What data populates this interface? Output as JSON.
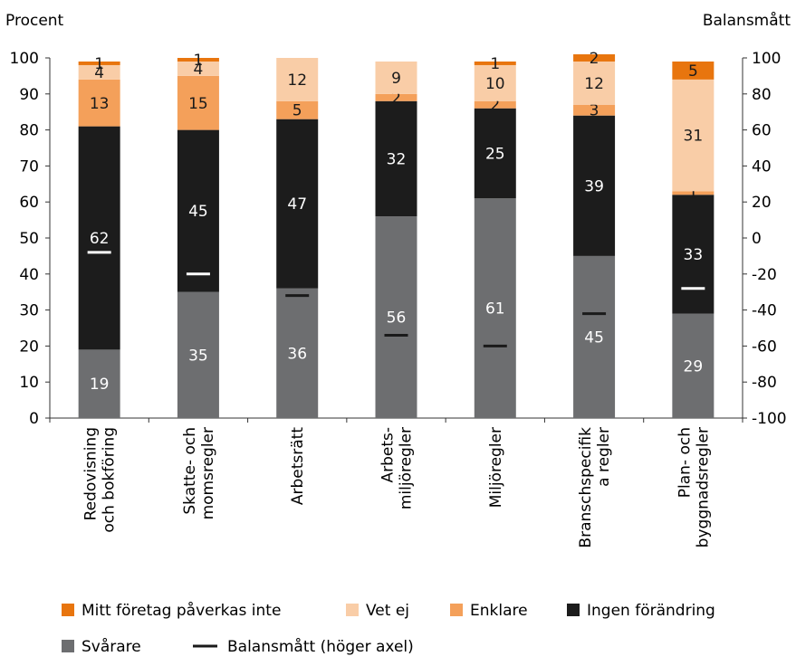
{
  "chart_data": {
    "type": "bar",
    "stacked": true,
    "ylabel": "Procent",
    "y2label": "Balansmått",
    "ylim": [
      0,
      100
    ],
    "y2lim": [
      -100,
      100
    ],
    "yticks": [
      0,
      10,
      20,
      30,
      40,
      50,
      60,
      70,
      80,
      90,
      100
    ],
    "y2ticks": [
      -100,
      -80,
      -60,
      -40,
      -20,
      0,
      20,
      40,
      60,
      80,
      100
    ],
    "categories": [
      [
        "Redovisning",
        "och bokföring"
      ],
      [
        "Skatte- och",
        "momsregler"
      ],
      [
        "Arbetsrätt"
      ],
      [
        "Arbets-",
        "miljöregler"
      ],
      [
        "Miljöregler"
      ],
      [
        "Branschspecifik",
        "a regler"
      ],
      [
        "Plan- och",
        "byggnadsregler"
      ]
    ],
    "series": [
      {
        "name": "Svårare",
        "color": "#6d6e70",
        "values": [
          19,
          35,
          36,
          56,
          61,
          45,
          29
        ]
      },
      {
        "name": "Ingen förändring",
        "color": "#1c1c1c",
        "values": [
          62,
          45,
          47,
          32,
          25,
          39,
          33
        ]
      },
      {
        "name": "Enklare",
        "color": "#f4a05a",
        "values": [
          13,
          15,
          5,
          2,
          2,
          3,
          1
        ]
      },
      {
        "name": "Vet ej",
        "color": "#f9cda7",
        "values": [
          4,
          4,
          12,
          9,
          10,
          12,
          31
        ]
      },
      {
        "name": "Mitt företag påverkas inte",
        "color": "#e8750e",
        "values": [
          1,
          1,
          0,
          0,
          1,
          2,
          5
        ]
      }
    ],
    "balance": {
      "name": "Balansmått (höger axel)",
      "values": [
        -8,
        -20,
        -32,
        -54,
        -60,
        -42,
        -28
      ]
    },
    "legend_position": "bottom",
    "grid": false
  }
}
